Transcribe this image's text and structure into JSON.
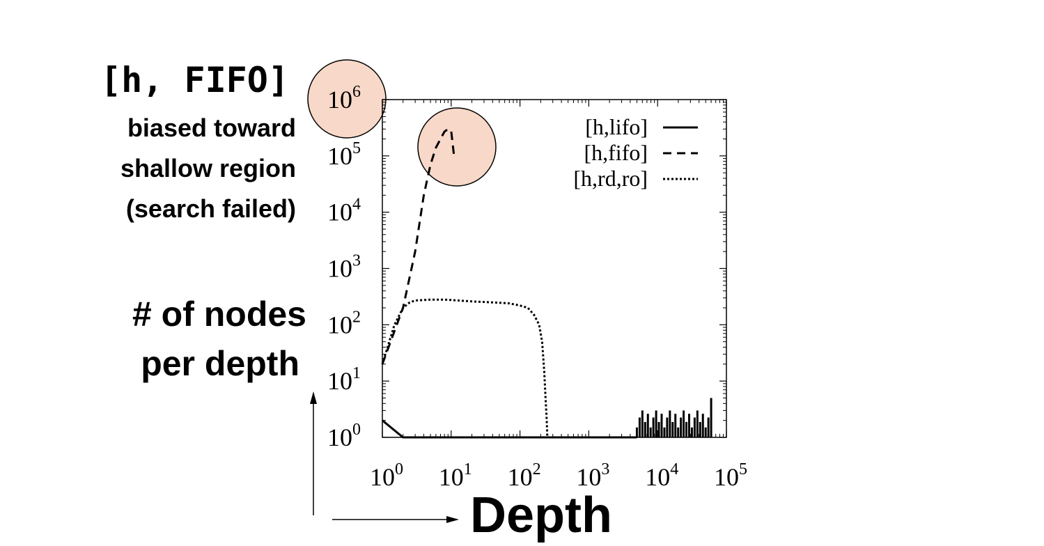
{
  "annotation": {
    "title": "[h, FIFO]",
    "lines": [
      "biased toward",
      "shallow region",
      "(search failed)"
    ]
  },
  "ylabel_lines": [
    "# of nodes",
    "per depth"
  ],
  "xlabel": "Depth",
  "highlight_color": "#f8d8c8",
  "chart_data": {
    "type": "line",
    "xscale": "log",
    "yscale": "log",
    "xlim": [
      1,
      100000
    ],
    "ylim": [
      1,
      1000000
    ],
    "x_ticks": [
      {
        "value": 1,
        "base": "10",
        "exp": "0"
      },
      {
        "value": 10,
        "base": "10",
        "exp": "1"
      },
      {
        "value": 100,
        "base": "10",
        "exp": "2"
      },
      {
        "value": 1000,
        "base": "10",
        "exp": "3"
      },
      {
        "value": 10000,
        "base": "10",
        "exp": "4"
      },
      {
        "value": 100000,
        "base": "10",
        "exp": "5"
      }
    ],
    "y_ticks": [
      {
        "value": 1,
        "base": "10",
        "exp": "0"
      },
      {
        "value": 10,
        "base": "10",
        "exp": "1"
      },
      {
        "value": 100,
        "base": "10",
        "exp": "2"
      },
      {
        "value": 1000,
        "base": "10",
        "exp": "3"
      },
      {
        "value": 10000,
        "base": "10",
        "exp": "4"
      },
      {
        "value": 100000,
        "base": "10",
        "exp": "5"
      },
      {
        "value": 1000000,
        "base": "10",
        "exp": "6"
      }
    ],
    "highlighted_tick": "10^6 (y axis)",
    "highlighted_point": [
      10,
      300000
    ],
    "legend_position": "top-right",
    "series": [
      {
        "name": "[h,lifo]",
        "dash": "solid",
        "points": [
          [
            1,
            2
          ],
          [
            2,
            1
          ],
          [
            5000,
            1
          ]
        ],
        "spikes": {
          "x_start": 5000,
          "x_end": 60000,
          "count": 28,
          "low": 1,
          "high_min": 1.5,
          "high_max": 3,
          "end_high": 5
        }
      },
      {
        "name": "[h,fifo]",
        "dash": "dashed",
        "points": [
          [
            1,
            20
          ],
          [
            2,
            200
          ],
          [
            3,
            2000
          ],
          [
            4,
            20000
          ],
          [
            5,
            70000
          ],
          [
            6,
            140000
          ],
          [
            7,
            200000
          ],
          [
            8,
            270000
          ],
          [
            9,
            300000
          ],
          [
            10,
            280000
          ],
          [
            11,
            100000
          ]
        ]
      },
      {
        "name": "[h,rd,ro]",
        "dash": "dotted",
        "points": [
          [
            1,
            20
          ],
          [
            1.5,
            100
          ],
          [
            2,
            200
          ],
          [
            2.5,
            250
          ],
          [
            3,
            270
          ],
          [
            5,
            280
          ],
          [
            8,
            280
          ],
          [
            10,
            275
          ],
          [
            20,
            260
          ],
          [
            40,
            250
          ],
          [
            70,
            240
          ],
          [
            100,
            220
          ],
          [
            130,
            200
          ],
          [
            160,
            150
          ],
          [
            190,
            100
          ],
          [
            210,
            50
          ],
          [
            225,
            15
          ],
          [
            235,
            5
          ],
          [
            245,
            2
          ],
          [
            250,
            1
          ]
        ]
      }
    ]
  }
}
